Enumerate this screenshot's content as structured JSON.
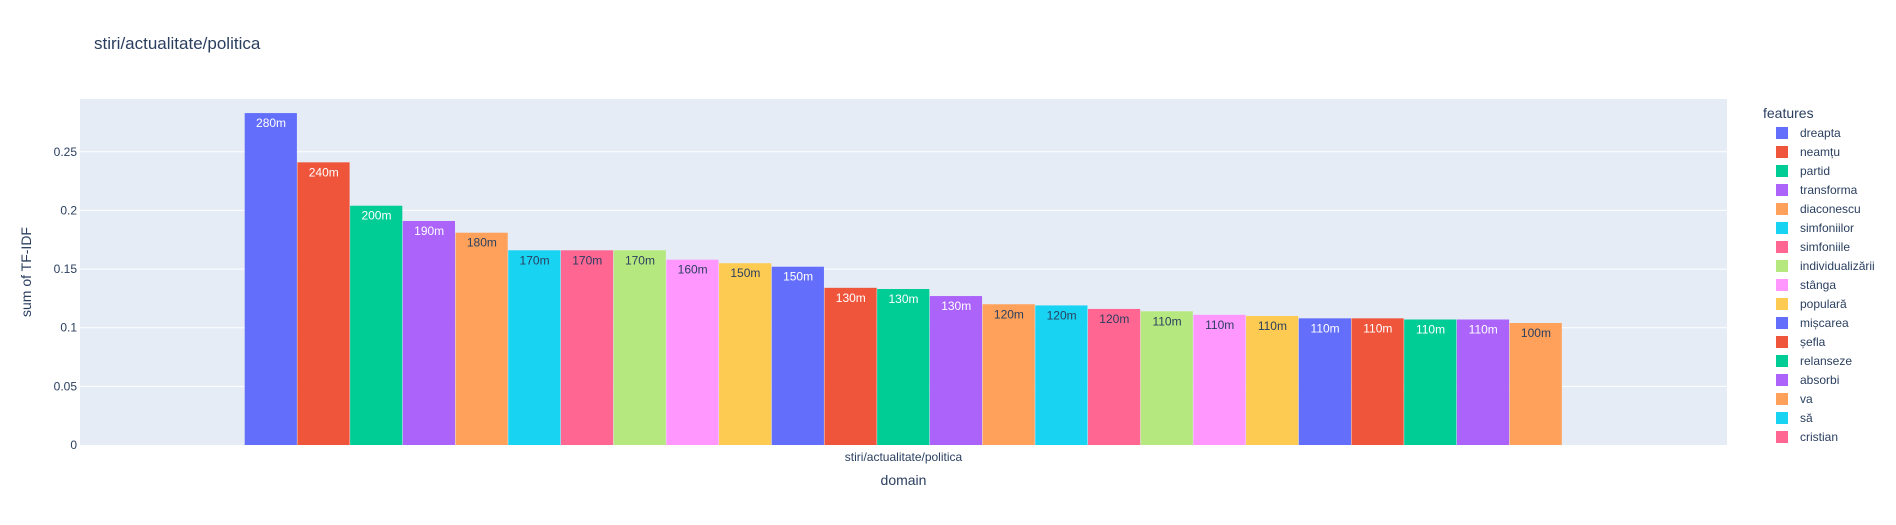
{
  "chart_data": {
    "type": "bar",
    "title": "stiri/actualitate/politica",
    "xlabel": "domain",
    "ylabel": "sum of TF-IDF",
    "categories": [
      "stiri/actualitate/politica"
    ],
    "ylim": [
      0,
      0.295
    ],
    "yticks": [
      0,
      0.05,
      0.1,
      0.15,
      0.2,
      0.25
    ],
    "ytick_labels": [
      "0",
      "0.05",
      "0.1",
      "0.15",
      "0.2",
      "0.25"
    ],
    "grid": true,
    "barmode": "group",
    "legend": {
      "title": "features",
      "placement": "right"
    },
    "series": [
      {
        "name": "dreapta",
        "value": 0.283,
        "label": "280m",
        "color": "#636efa"
      },
      {
        "name": "neamțu",
        "value": 0.241,
        "label": "240m",
        "color": "#ef553b"
      },
      {
        "name": "partid",
        "value": 0.204,
        "label": "200m",
        "color": "#00cc96"
      },
      {
        "name": "transforma",
        "value": 0.191,
        "label": "190m",
        "color": "#ab63fa"
      },
      {
        "name": "diaconescu",
        "value": 0.181,
        "label": "180m",
        "color": "#ffa15a"
      },
      {
        "name": "simfoniilor",
        "value": 0.166,
        "label": "170m",
        "color": "#19d3f3"
      },
      {
        "name": "simfoniile",
        "value": 0.166,
        "label": "170m",
        "color": "#ff6692"
      },
      {
        "name": "individualizării",
        "value": 0.166,
        "label": "170m",
        "color": "#b6e880"
      },
      {
        "name": "stânga",
        "value": 0.158,
        "label": "160m",
        "color": "#ff97ff"
      },
      {
        "name": "populară",
        "value": 0.155,
        "label": "150m",
        "color": "#fecb52"
      },
      {
        "name": "mișcarea",
        "value": 0.152,
        "label": "150m",
        "color": "#636efa"
      },
      {
        "name": "șefla",
        "value": 0.134,
        "label": "130m",
        "color": "#ef553b"
      },
      {
        "name": "relanseze",
        "value": 0.133,
        "label": "130m",
        "color": "#00cc96"
      },
      {
        "name": "absorbi",
        "value": 0.127,
        "label": "130m",
        "color": "#ab63fa"
      },
      {
        "name": "va",
        "value": 0.12,
        "label": "120m",
        "color": "#ffa15a"
      },
      {
        "name": "să",
        "value": 0.119,
        "label": "120m",
        "color": "#19d3f3"
      },
      {
        "name": "cristian",
        "value": 0.116,
        "label": "120m",
        "color": "#ff6692"
      },
      {
        "name": "",
        "value": 0.114,
        "label": "110m",
        "color": "#b6e880"
      },
      {
        "name": "",
        "value": 0.111,
        "label": "110m",
        "color": "#ff97ff"
      },
      {
        "name": "",
        "value": 0.11,
        "label": "110m",
        "color": "#fecb52"
      },
      {
        "name": "",
        "value": 0.108,
        "label": "110m",
        "color": "#636efa"
      },
      {
        "name": "",
        "value": 0.108,
        "label": "110m",
        "color": "#ef553b"
      },
      {
        "name": "",
        "value": 0.107,
        "label": "110m",
        "color": "#00cc96"
      },
      {
        "name": "",
        "value": 0.107,
        "label": "110m",
        "color": "#ab63fa"
      },
      {
        "name": "",
        "value": 0.104,
        "label": "100m",
        "color": "#ffa15a"
      }
    ],
    "colors": {
      "plot_bg": "#e5ecf6",
      "grid": "#ffffff",
      "text": "#2a3f5f"
    }
  }
}
